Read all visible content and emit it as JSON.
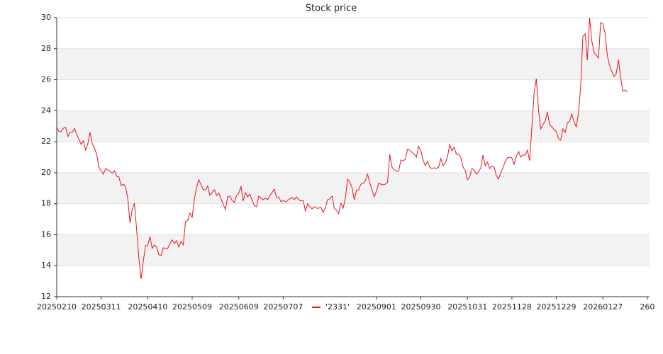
{
  "chart_data": {
    "type": "line",
    "title": "Stock price",
    "x": [
      0,
      1,
      2,
      3,
      4,
      5,
      6,
      7,
      8,
      9,
      10,
      11,
      12,
      13,
      14,
      15,
      16,
      17,
      18,
      19,
      20,
      21,
      22,
      23,
      24,
      25,
      26,
      27,
      28,
      29,
      30,
      31,
      32,
      33,
      34,
      35,
      36,
      37,
      38,
      39,
      40,
      41,
      42,
      43,
      44,
      45,
      46,
      47,
      48,
      49,
      50,
      51,
      52,
      53,
      54,
      55,
      56,
      57,
      58,
      59,
      60,
      61,
      62,
      63,
      64,
      65,
      66,
      67,
      68,
      69,
      70,
      71,
      72,
      73,
      74,
      75,
      76,
      77,
      78,
      79,
      80,
      81,
      82,
      83,
      84,
      85,
      86,
      87,
      88,
      89,
      90,
      91,
      92,
      93,
      94,
      95,
      96,
      97,
      98,
      99,
      100,
      101,
      102,
      103,
      104,
      105,
      106,
      107,
      108,
      109,
      110,
      111,
      112,
      113,
      114,
      115,
      116,
      117,
      118,
      119,
      120,
      121,
      122,
      123,
      124,
      125,
      126,
      127,
      128,
      129,
      130,
      131,
      132,
      133,
      134,
      135,
      136,
      137,
      138,
      139,
      140,
      141,
      142,
      143,
      144,
      145,
      146,
      147,
      148,
      149,
      150,
      151,
      152,
      153,
      154,
      155,
      156,
      157,
      158,
      159,
      160,
      161,
      162,
      163,
      164,
      165,
      166,
      167,
      168,
      169,
      170,
      171,
      172,
      173,
      174,
      175,
      176,
      177,
      178,
      179,
      180,
      181,
      182,
      183,
      184,
      185,
      186,
      187,
      188,
      189,
      190,
      191,
      192,
      193,
      194,
      195,
      196,
      197,
      198,
      199,
      200,
      201,
      202,
      203,
      204,
      205,
      206,
      207,
      208,
      209,
      210,
      211,
      212,
      213,
      214,
      215,
      216,
      217,
      218,
      219,
      220,
      221,
      222,
      223,
      224,
      225,
      226,
      227,
      228,
      229,
      230,
      231,
      232,
      233,
      234,
      235,
      236,
      237,
      238,
      239,
      240,
      241,
      242,
      243,
      244,
      245,
      246,
      247,
      248,
      249,
      250,
      251,
      252,
      253,
      254,
      255,
      256,
      257
    ],
    "series": [
      {
        "name": "'2331'",
        "color": "#e8141b",
        "values": [
          22.92,
          22.65,
          22.65,
          22.87,
          22.92,
          22.33,
          22.6,
          22.6,
          22.87,
          22.46,
          22.14,
          21.82,
          22.05,
          21.46,
          21.87,
          22.6,
          21.87,
          21.59,
          21.18,
          20.36,
          20.13,
          19.9,
          20.27,
          20.18,
          20.09,
          19.95,
          20.13,
          19.77,
          19.72,
          19.17,
          19.26,
          19.08,
          18.35,
          16.75,
          17.62,
          18.03,
          16.3,
          14.47,
          13.14,
          14.29,
          15.29,
          15.29,
          15.88,
          15.11,
          15.34,
          15.2,
          14.7,
          14.65,
          15.15,
          15.11,
          15.11,
          15.43,
          15.66,
          15.43,
          15.61,
          15.2,
          15.56,
          15.34,
          16.84,
          16.93,
          17.39,
          17.12,
          18.31,
          19.04,
          19.54,
          19.22,
          18.9,
          18.9,
          19.13,
          18.53,
          18.72,
          18.9,
          18.53,
          18.67,
          18.31,
          17.94,
          17.62,
          18.44,
          18.49,
          18.21,
          18.08,
          18.53,
          18.67,
          19.13,
          18.17,
          18.72,
          18.44,
          18.62,
          18.21,
          17.89,
          17.8,
          18.49,
          18.35,
          18.26,
          18.35,
          18.26,
          18.53,
          18.72,
          18.94,
          18.4,
          18.44,
          18.12,
          18.21,
          18.12,
          18.21,
          18.31,
          18.4,
          18.26,
          18.44,
          18.26,
          18.17,
          18.21,
          17.53,
          17.99,
          17.8,
          17.67,
          17.8,
          17.71,
          17.71,
          17.76,
          17.44,
          17.76,
          18.26,
          18.31,
          18.49,
          17.71,
          17.57,
          17.35,
          18.03,
          17.71,
          18.35,
          19.58,
          19.4,
          19.04,
          18.26,
          18.85,
          18.9,
          19.26,
          19.31,
          19.49,
          19.9,
          19.36,
          18.9,
          18.44,
          18.81,
          19.31,
          19.26,
          19.22,
          19.26,
          19.36,
          21.18,
          20.36,
          20.18,
          20.09,
          20.09,
          20.82,
          20.77,
          20.86,
          21.5,
          21.46,
          21.32,
          21.18,
          21.0,
          21.69,
          21.41,
          20.82,
          20.45,
          20.73,
          20.36,
          20.27,
          20.32,
          20.27,
          20.36,
          20.91,
          20.45,
          20.63,
          21.0,
          21.82,
          21.41,
          21.64,
          21.18,
          21.18,
          21.0,
          20.36,
          20.13,
          19.54,
          19.72,
          20.27,
          20.18,
          19.9,
          20.04,
          20.32,
          21.14,
          20.45,
          20.68,
          20.27,
          20.41,
          20.36,
          19.81,
          19.58,
          20.0,
          20.32,
          20.73,
          20.95,
          21.0,
          20.95,
          20.54,
          21.05,
          21.37,
          21.0,
          21.14,
          21.14,
          21.46,
          20.77,
          22.92,
          25.11,
          26.07,
          24.06,
          22.83,
          23.1,
          23.33,
          23.92,
          23.1,
          22.96,
          22.78,
          22.65,
          22.19,
          22.1,
          22.83,
          22.6,
          23.19,
          23.33,
          23.79,
          23.28,
          22.96,
          23.83,
          25.61,
          28.81,
          28.95,
          27.26,
          30.0,
          28.49,
          27.76,
          27.58,
          27.4,
          29.68,
          29.59,
          29.0,
          27.53,
          26.94,
          26.53,
          26.21,
          26.39,
          27.3,
          26.12,
          25.25,
          25.34,
          25.2
        ]
      }
    ],
    "xlim": [
      0,
      267
    ],
    "xticks": [
      {
        "value": 0,
        "label": "20250210"
      },
      {
        "value": 20,
        "label": "20250311"
      },
      {
        "value": 41,
        "label": "20250410"
      },
      {
        "value": 61,
        "label": "20250509"
      },
      {
        "value": 82,
        "label": "20250609"
      },
      {
        "value": 102,
        "label": "20250707"
      },
      {
        "value": 144,
        "label": "20250901"
      },
      {
        "value": 164,
        "label": "20250930"
      },
      {
        "value": 185,
        "label": "20251031"
      },
      {
        "value": 205,
        "label": "20251128"
      },
      {
        "value": 225,
        "label": "20251229"
      },
      {
        "value": 246,
        "label": "20260127"
      },
      {
        "value": 266,
        "label": "260"
      }
    ],
    "ylim": [
      12,
      30
    ],
    "yticks": [
      12,
      14,
      16,
      18,
      20,
      22,
      24,
      26,
      28,
      30
    ],
    "grid": true,
    "legend": "bottom"
  }
}
